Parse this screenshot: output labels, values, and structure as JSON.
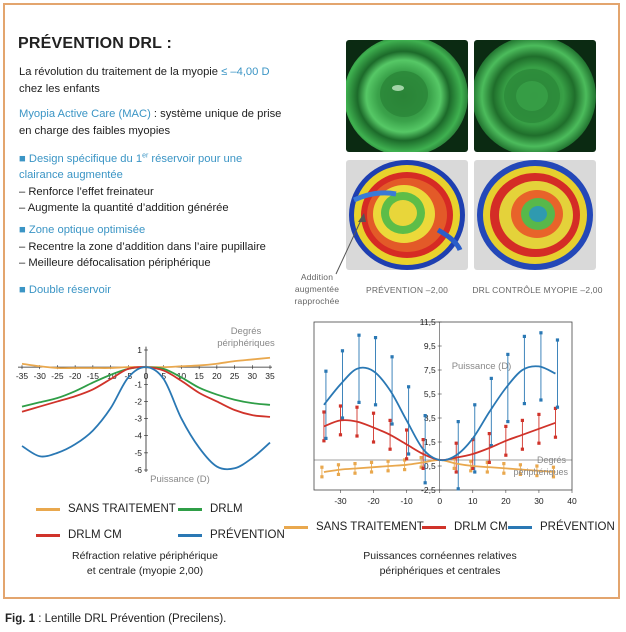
{
  "title": "PRÉVENTION DRL :",
  "intro": {
    "text_a": "La révolution du traitement de la myopie ",
    "highlight": "≤ –4,00 D",
    "text_b": "chez les enfants"
  },
  "mac": {
    "highlight": "Myopia Active Care (MAC)",
    "text_a": " : système unique de prise",
    "text_b": "en charge des faibles myopies"
  },
  "features": [
    {
      "bullet": "■",
      "heading_a": "Design spécifique du 1",
      "heading_sup": "er",
      "heading_b": " réservoir pour une",
      "heading_c": "clairance augmentée",
      "points": [
        "– Renforce l’effet freinateur",
        "– Augmente la quantité d’addition générée"
      ]
    },
    {
      "bullet": "■",
      "heading_a": "Zone optique optimisée",
      "points": [
        "– Recentre la zone d’addition dans l’aire pupillaire",
        "– Meilleure défocalisation périphérique"
      ]
    },
    {
      "bullet": "■",
      "heading_a": "Double réservoir"
    }
  ],
  "image_captions": {
    "annotation": [
      "Addition",
      "augmentée",
      "rapprochée"
    ],
    "left": "PRÉVENTION –2,00",
    "right": "DRL CONTRÔLE MYOPIE –2,00"
  },
  "colors": {
    "sans_traitement": "#e9a84e",
    "drlm": "#2f9e47",
    "drlm_cm": "#d0332a",
    "prevention": "#2a78b4",
    "accent_blue": "#3b95c5",
    "frame": "#e3a56e"
  },
  "chart_data": [
    {
      "type": "line",
      "x": [
        -35,
        -30,
        -25,
        -20,
        -15,
        -10,
        -5,
        0,
        5,
        10,
        15,
        20,
        25,
        30,
        35
      ],
      "xlim": [
        -35,
        35
      ],
      "ylim": [
        -6,
        1
      ],
      "yticks": [
        1,
        -1,
        -2,
        -3,
        -4,
        -5,
        -6
      ],
      "xlabel": "Degrés\npériphériques",
      "ylabel": "Puissance (D)",
      "series": [
        {
          "name": "SANS TRAITEMENT",
          "values": [
            0.2,
            0.05,
            -0.05,
            -0.05,
            -0.05,
            -0.05,
            0,
            0,
            0,
            0.05,
            0.1,
            0.2,
            0.35,
            0.45,
            0.55
          ]
        },
        {
          "name": "DRLM",
          "values": [
            -2.3,
            -2.05,
            -1.8,
            -1.4,
            -0.9,
            -0.45,
            -0.1,
            0,
            -0.1,
            -0.6,
            -1.2,
            -1.6,
            -1.9,
            -2.1,
            -2.2
          ]
        },
        {
          "name": "DRLM CM",
          "values": [
            -2.6,
            -2.3,
            -2.0,
            -1.7,
            -1.3,
            -0.7,
            -0.1,
            0,
            -0.2,
            -0.8,
            -1.5,
            -2.0,
            -2.5,
            -2.8,
            -2.9
          ]
        },
        {
          "name": "PRÉVENTION",
          "values": [
            -4.6,
            -5.2,
            -5.0,
            -4.5,
            -3.7,
            -2.4,
            -0.6,
            0,
            -0.7,
            -3.0,
            -4.7,
            -5.8,
            -5.9,
            -5.3,
            -4.4
          ]
        }
      ],
      "legend": [
        "SANS TRAITEMENT",
        "DRLM",
        "DRLM CM",
        "PRÉVENTION"
      ],
      "caption": [
        "Réfraction relative périphérique",
        "et centrale (myopie 2,00)"
      ]
    },
    {
      "type": "line",
      "x": [
        -35,
        -30,
        -25,
        -20,
        -15,
        -10,
        -5,
        0,
        5,
        10,
        15,
        20,
        25,
        30,
        35
      ],
      "xlim": [
        -38,
        40
      ],
      "ylim": [
        -2.5,
        11.5
      ],
      "xticks": [
        -30,
        -20,
        -10,
        0,
        10,
        20,
        30,
        40
      ],
      "yticks": [
        11.5,
        9.5,
        7.5,
        5.5,
        3.5,
        1.5,
        -0.5,
        -2.5
      ],
      "xlabel": "Degrés\npériphériques",
      "ylabel": "Puissance (D)",
      "series": [
        {
          "name": "SANS TRAITEMENT",
          "values": [
            -1.0,
            -0.8,
            -0.7,
            -0.6,
            -0.5,
            -0.4,
            -0.2,
            0,
            -0.3,
            -0.5,
            -0.6,
            -0.7,
            -0.8,
            -0.9,
            -1.0
          ]
        },
        {
          "name": "DRLM CM",
          "values": [
            2.8,
            3.3,
            3.2,
            2.7,
            2.1,
            1.3,
            0.5,
            0,
            0.2,
            0.5,
            1.0,
            1.6,
            2.1,
            2.6,
            3.1
          ]
        },
        {
          "name": "PRÉVENTION",
          "values": [
            4.6,
            6.3,
            7.6,
            7.4,
            5.8,
            3.3,
            0.9,
            0,
            0.4,
            1.8,
            4.0,
            6.0,
            7.5,
            7.8,
            7.2
          ]
        }
      ],
      "legend": [
        "SANS TRAITEMENT",
        "DRLM CM",
        "PRÉVENTION"
      ],
      "caption": [
        "Puissances cornéennes relatives",
        "périphériques et centrales"
      ]
    }
  ],
  "figure_caption": {
    "label": "Fig. 1",
    "text": " : Lentille DRL Prévention (Precilens)."
  }
}
